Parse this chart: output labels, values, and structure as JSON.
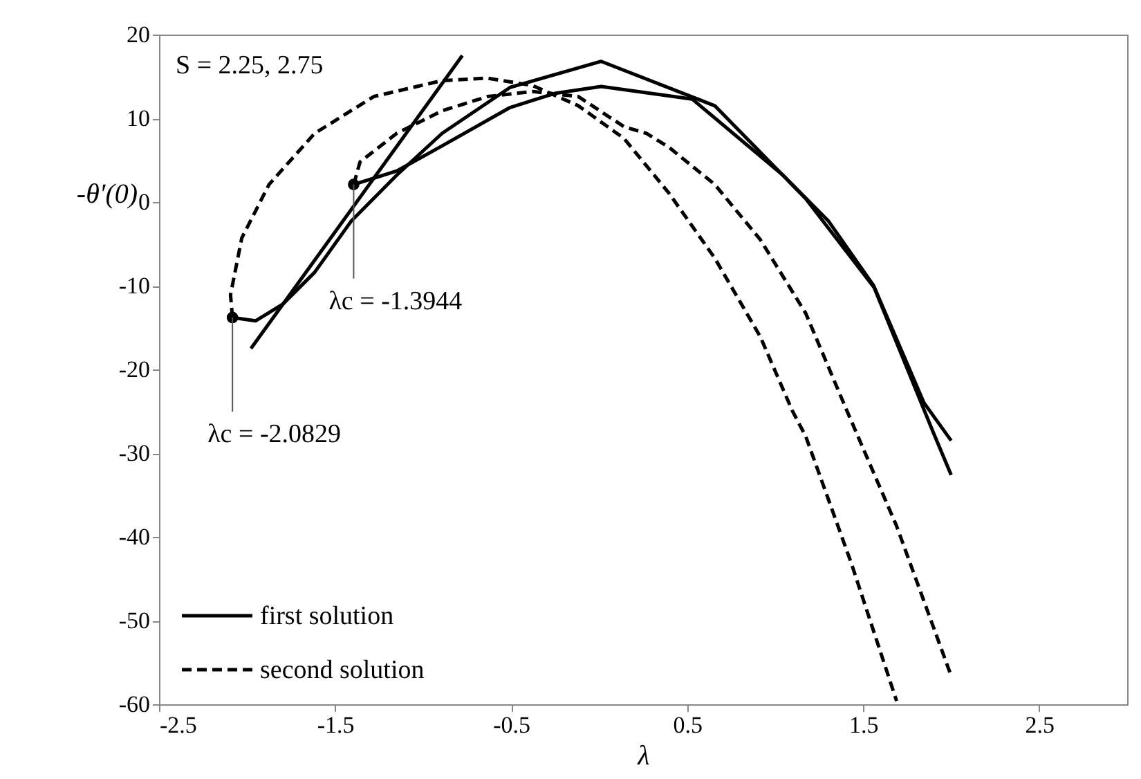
{
  "chart_data": {
    "type": "line",
    "xlabel": "λ",
    "ylabel": "-θ′(0)",
    "xlim": [
      -2.5,
      3
    ],
    "xticks": [
      -2.5,
      -1.5,
      -0.5,
      0.5,
      1.5,
      2.5
    ],
    "ylim": [
      -60,
      20
    ],
    "yticks": [
      -60,
      -50,
      -40,
      -30,
      -20,
      -10,
      0,
      10,
      20
    ],
    "grid": false,
    "legend": "bottom left",
    "series": [
      {
        "name": "first solution",
        "line_style": "solid",
        "color": "#000000",
        "x": [
          -2.083,
          -1.952,
          -1.797,
          -1.616,
          -1.409,
          -1.15,
          -0.892,
          -0.505,
          0.012,
          0.657,
          1.174,
          1.562,
          1.898,
          2.0
        ],
        "values": [
          -13.8,
          -14.2,
          -12.2,
          -8.4,
          -2.3,
          3.2,
          8.2,
          13.7,
          16.8,
          11.5,
          0.4,
          -10.2,
          -27.5,
          -32.6
        ]
      },
      {
        "line_style": "solid",
        "color": "#000000",
        "x": [
          -1.394,
          -1.15,
          -0.892,
          -0.505,
          -0.246,
          0.012,
          0.529,
          1.045,
          1.304,
          1.56,
          1.846,
          2.0
        ],
        "values": [
          2.1,
          3.7,
          6.7,
          11.3,
          13.0,
          13.8,
          12.3,
          3.2,
          -2.3,
          -10.0,
          -24.0,
          -28.5
        ]
      },
      {
        "name": "second solution",
        "line_style": "dashed",
        "color": "#000000",
        "x": [
          -2.083,
          -2.094,
          -2.03,
          -1.875,
          -1.616,
          -1.28,
          -0.893,
          -0.634,
          -0.376,
          -0.118,
          0.141,
          0.399,
          0.657,
          0.916,
          1.097,
          1.174,
          1.432,
          1.69
        ],
        "values": [
          -13.8,
          -11.1,
          -4.3,
          2.1,
          8.2,
          12.6,
          14.5,
          14.8,
          13.9,
          11.5,
          7.6,
          1.0,
          -6.7,
          -16.1,
          -24.9,
          -28.0,
          -43.1,
          -59.6
        ]
      },
      {
        "line_style": "dashed",
        "color": "#000000",
        "x": [
          -1.394,
          -1.358,
          -1.15,
          -0.892,
          -0.634,
          -0.376,
          -0.118,
          0.141,
          0.27,
          0.399,
          0.657,
          0.916,
          1.174,
          1.407,
          1.69,
          2.0
        ],
        "values": [
          2.1,
          4.8,
          8.2,
          10.9,
          12.6,
          13.2,
          12.6,
          9.0,
          8.2,
          6.5,
          2.1,
          -4.5,
          -13.3,
          -24.9,
          -38.7,
          -56.6
        ]
      },
      {
        "line_style": "solid",
        "color": "#000000",
        "x": [
          -0.777,
          -1.978
        ],
        "values": [
          17.5,
          -17.5
        ]
      },
      {
        "type": "scatter",
        "marker": "circle",
        "color": "#000000",
        "x": [
          -2.0829,
          -1.3944
        ],
        "values": [
          -13.8,
          2.1
        ]
      }
    ],
    "annotations": [
      "S = 2.25, 2.75",
      {
        "text": "λc = -1.3944",
        "x": -1.3944,
        "y": 2.1
      },
      {
        "text": "λc = -2.0829",
        "x": -2.0829,
        "y": -13.8
      }
    ]
  }
}
